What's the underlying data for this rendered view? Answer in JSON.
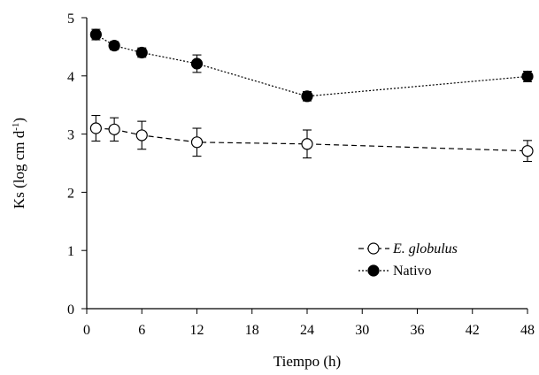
{
  "chart_data": {
    "type": "line",
    "xlabel": "Tiempo (h)",
    "ylabel_main": "Ks (log cm d",
    "ylabel_sup": "-1",
    "ylabel_end": ")",
    "xlim": [
      0,
      48
    ],
    "ylim": [
      0,
      5
    ],
    "xticks": [
      0,
      6,
      12,
      18,
      24,
      30,
      36,
      42,
      48
    ],
    "yticks": [
      0,
      1,
      2,
      3,
      4,
      5
    ],
    "grid": false,
    "legend_position": "bottom-right",
    "series": [
      {
        "name": "E. globulus",
        "marker": "open-circle",
        "line_style": "dashed",
        "x": [
          1,
          3,
          6,
          12,
          24,
          48
        ],
        "y": [
          3.1,
          3.08,
          2.98,
          2.86,
          2.83,
          2.71
        ],
        "error": [
          0.22,
          0.2,
          0.24,
          0.24,
          0.24,
          0.18
        ]
      },
      {
        "name": "Nativo",
        "marker": "filled-circle",
        "line_style": "dotted",
        "x": [
          1,
          3,
          6,
          12,
          24,
          48
        ],
        "y": [
          4.71,
          4.52,
          4.4,
          4.21,
          3.65,
          3.99
        ],
        "error": [
          0.09,
          0.07,
          0.08,
          0.15,
          0.08,
          0.09
        ]
      }
    ]
  }
}
